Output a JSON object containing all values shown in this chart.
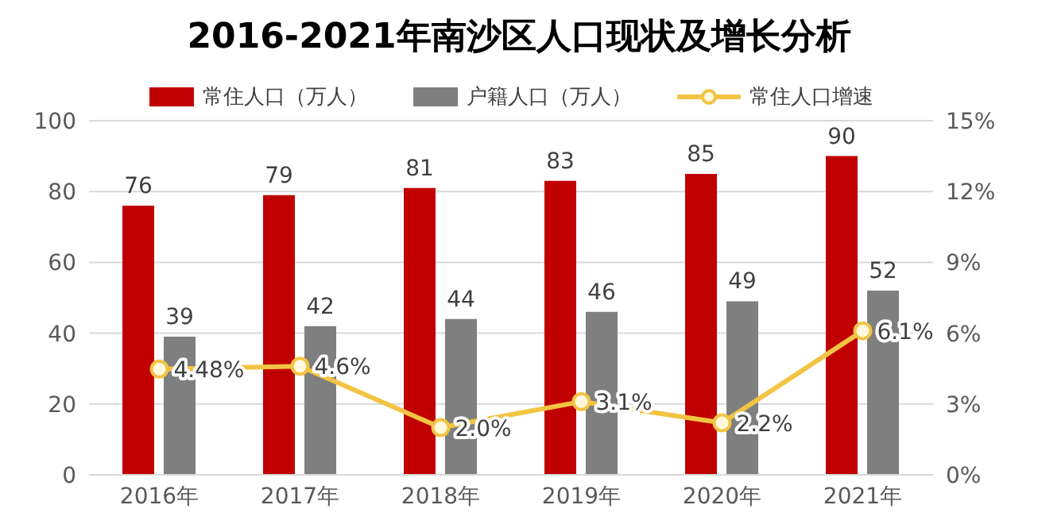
{
  "chart_data": {
    "type": "bar",
    "title": "2016-2021年南沙区人口现状及增长分析",
    "categories": [
      "2016年",
      "2017年",
      "2018年",
      "2019年",
      "2020年",
      "2021年"
    ],
    "series": [
      {
        "name": "常住人口（万人）",
        "color": "#c00000",
        "values": [
          76,
          79,
          81,
          83,
          85,
          90
        ],
        "value_labels": [
          "76",
          "79",
          "81",
          "83",
          "85",
          "90"
        ]
      },
      {
        "name": "户籍人口（万人）",
        "color": "#7f7f7f",
        "values": [
          39,
          42,
          44,
          46,
          49,
          52
        ],
        "value_labels": [
          "39",
          "42",
          "44",
          "46",
          "49",
          "52"
        ]
      },
      {
        "name": "常住人口增速",
        "type": "line",
        "axis": "y2",
        "color": "#f2c443",
        "values": [
          4.48,
          4.6,
          2.0,
          3.1,
          2.2,
          6.1
        ],
        "value_labels": [
          "4.48%",
          "4.6%",
          "2.0%",
          "3.1%",
          "2.2%",
          "6.1%"
        ]
      }
    ],
    "ylim": [
      0,
      100
    ],
    "yticks": [
      0,
      20,
      40,
      60,
      80,
      100
    ],
    "y2lim": [
      0,
      15
    ],
    "y2ticks": [
      {
        "value": 0,
        "label": "0%"
      },
      {
        "value": 3,
        "label": "3%"
      },
      {
        "value": 6,
        "label": "6%"
      },
      {
        "value": 9,
        "label": "9%"
      },
      {
        "value": 12,
        "label": "12%"
      },
      {
        "value": 15,
        "label": "15%"
      }
    ],
    "grid": "y",
    "legend": "top",
    "marker": "circle"
  }
}
